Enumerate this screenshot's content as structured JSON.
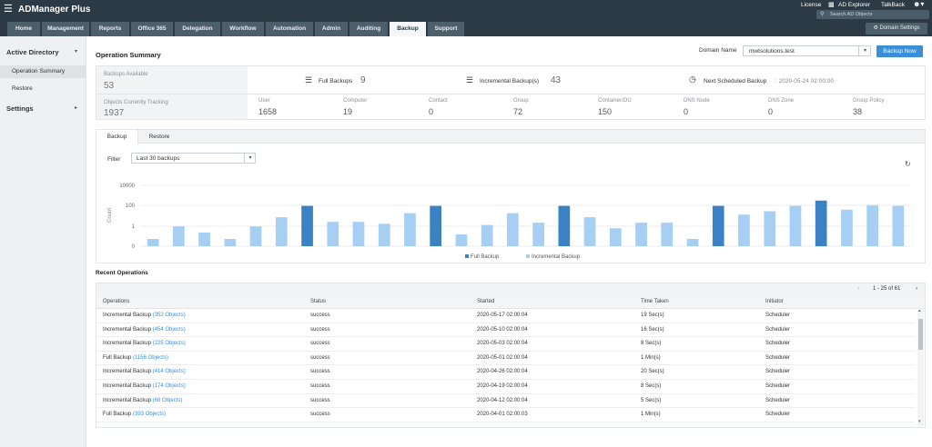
{
  "app": {
    "title": "ADManager Plus"
  },
  "topbar": {
    "license": "License",
    "ad_explorer": "AD Explorer",
    "talkback": "TalkBack",
    "search_placeholder": "Search AD Objects"
  },
  "tabs": [
    {
      "label": "Home"
    },
    {
      "label": "Management"
    },
    {
      "label": "Reports"
    },
    {
      "label": "Office 365"
    },
    {
      "label": "Delegation"
    },
    {
      "label": "Workflow"
    },
    {
      "label": "Automation"
    },
    {
      "label": "Admin"
    },
    {
      "label": "Auditing"
    },
    {
      "label": "Backup"
    },
    {
      "label": "Support"
    }
  ],
  "domain_settings": "Domain Settings",
  "sidebar": {
    "active_directory": "Active Directory",
    "items": [
      {
        "label": "Operation Summary"
      },
      {
        "label": "Restore"
      }
    ],
    "settings": "Settings"
  },
  "summary": {
    "title": "Operation Summary",
    "domain_label": "Domain Name",
    "domain_value": "mwtsolutions.test",
    "backup_now": "Backup Now",
    "backups_available_label": "Backups Available",
    "backups_available_value": "53",
    "full_backups_label": "Full Backups",
    "full_backups_value": "9",
    "incremental_label": "Incremental Backup(s)",
    "incremental_value": "43",
    "next_scheduled_label": "Next Scheduled Backup",
    "next_scheduled_value": ": 2020-05-24 02:00:00",
    "tracking_label": "Objects Currently Tracking",
    "tracking_value": "1937",
    "counts": [
      {
        "label": "User",
        "value": "1658"
      },
      {
        "label": "Computer",
        "value": "19"
      },
      {
        "label": "Contact",
        "value": "0"
      },
      {
        "label": "Group",
        "value": "72"
      },
      {
        "label": "Container/OU",
        "value": "150"
      },
      {
        "label": "DNS Node",
        "value": "0"
      },
      {
        "label": "DNS Zone",
        "value": "0"
      },
      {
        "label": "Group Policy",
        "value": "38"
      }
    ]
  },
  "panel_tabs": {
    "backup": "Backup",
    "restore": "Restore"
  },
  "filter": {
    "label": "Filter",
    "value": "Last 30 backups"
  },
  "chart_data": {
    "type": "bar",
    "ylabel": "Count",
    "yscale": "log",
    "yticks": [
      "0",
      "1",
      "100",
      "10000"
    ],
    "legend_placement": "bottom",
    "series": [
      {
        "name": "Full Backup",
        "color": "#3a82c4"
      },
      {
        "name": "Incremental Backup",
        "color": "#a6cff3"
      }
    ],
    "bars": [
      {
        "type": "inc",
        "value": 3
      },
      {
        "type": "inc",
        "value": 20
      },
      {
        "type": "inc",
        "value": 8
      },
      {
        "type": "inc",
        "value": 3
      },
      {
        "type": "inc",
        "value": 20
      },
      {
        "type": "inc",
        "value": 80
      },
      {
        "type": "full",
        "value": 450
      },
      {
        "type": "inc",
        "value": 40
      },
      {
        "type": "inc",
        "value": 40
      },
      {
        "type": "inc",
        "value": 30
      },
      {
        "type": "inc",
        "value": 150
      },
      {
        "type": "full",
        "value": 450
      },
      {
        "type": "inc",
        "value": 6
      },
      {
        "type": "inc",
        "value": 25
      },
      {
        "type": "inc",
        "value": 150
      },
      {
        "type": "inc",
        "value": 35
      },
      {
        "type": "full",
        "value": 450
      },
      {
        "type": "inc",
        "value": 80
      },
      {
        "type": "inc",
        "value": 15
      },
      {
        "type": "inc",
        "value": 35
      },
      {
        "type": "inc",
        "value": 35
      },
      {
        "type": "inc",
        "value": 3
      },
      {
        "type": "full",
        "value": 450
      },
      {
        "type": "inc",
        "value": 120
      },
      {
        "type": "inc",
        "value": 200
      },
      {
        "type": "inc",
        "value": 450
      },
      {
        "type": "full",
        "value": 1000
      },
      {
        "type": "inc",
        "value": 250
      },
      {
        "type": "inc",
        "value": 500
      },
      {
        "type": "inc",
        "value": 450
      }
    ]
  },
  "recent": {
    "title": "Recent Operations",
    "pagination": "1 - 25 of 61",
    "headers": [
      "Operations",
      "Status",
      "Started",
      "Time Taken",
      "Initiator"
    ],
    "rows": [
      {
        "op": "Incremental Backup",
        "objects": "(352 Objects)",
        "status": "success",
        "started": "2020-05-17 02:00:04",
        "time": "19 Sec(s)",
        "initiator": "Scheduler"
      },
      {
        "op": "Incremental Backup",
        "objects": "(454 Objects)",
        "status": "success",
        "started": "2020-05-10 02:00:04",
        "time": "16 Sec(s)",
        "initiator": "Scheduler"
      },
      {
        "op": "Incremental Backup",
        "objects": "(225 Objects)",
        "status": "success",
        "started": "2020-05-03 02:00:04",
        "time": "8 Sec(s)",
        "initiator": "Scheduler"
      },
      {
        "op": "Full Backup",
        "objects": "(1156 Objects)",
        "status": "success",
        "started": "2020-05-01 02:00:04",
        "time": "1 Min(s)",
        "initiator": "Scheduler"
      },
      {
        "op": "Incremental Backup",
        "objects": "(414 Objects)",
        "status": "success",
        "started": "2020-04-26 02:00:04",
        "time": "20 Sec(s)",
        "initiator": "Scheduler"
      },
      {
        "op": "Incremental Backup",
        "objects": "(174 Objects)",
        "status": "success",
        "started": "2020-04-19 02:00:04",
        "time": "8 Sec(s)",
        "initiator": "Scheduler"
      },
      {
        "op": "Incremental Backup",
        "objects": "(68 Objects)",
        "status": "success",
        "started": "2020-04-12 02:00:04",
        "time": "5 Sec(s)",
        "initiator": "Scheduler"
      },
      {
        "op": "Full Backup",
        "objects": "(393 Objects)",
        "status": "success",
        "started": "2020-04-01 02:00:03",
        "time": "1 Min(s)",
        "initiator": "Scheduler"
      }
    ]
  }
}
